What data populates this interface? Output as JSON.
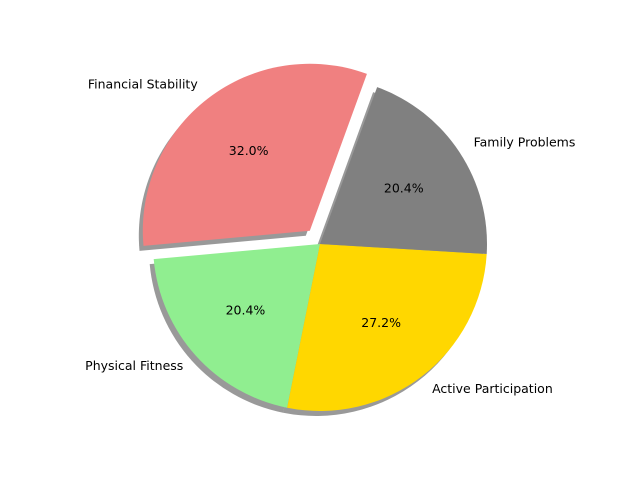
{
  "chart_data": {
    "type": "pie",
    "title": "",
    "start_angle_deg": 70,
    "direction": "counterclockwise",
    "shadow": true,
    "slices": [
      {
        "label": "Financial Stability",
        "value": 32.0,
        "pct_text": "32.0%",
        "color": "#F08080",
        "exploded": true
      },
      {
        "label": "Physical Fitness",
        "value": 20.4,
        "pct_text": "20.4%",
        "color": "#90EE90",
        "exploded": false
      },
      {
        "label": "Active Participation",
        "value": 27.2,
        "pct_text": "27.2%",
        "color": "#FFD700",
        "exploded": false
      },
      {
        "label": "Family Problems",
        "value": 20.4,
        "pct_text": "20.4%",
        "color": "#808080",
        "exploded": false
      }
    ]
  }
}
